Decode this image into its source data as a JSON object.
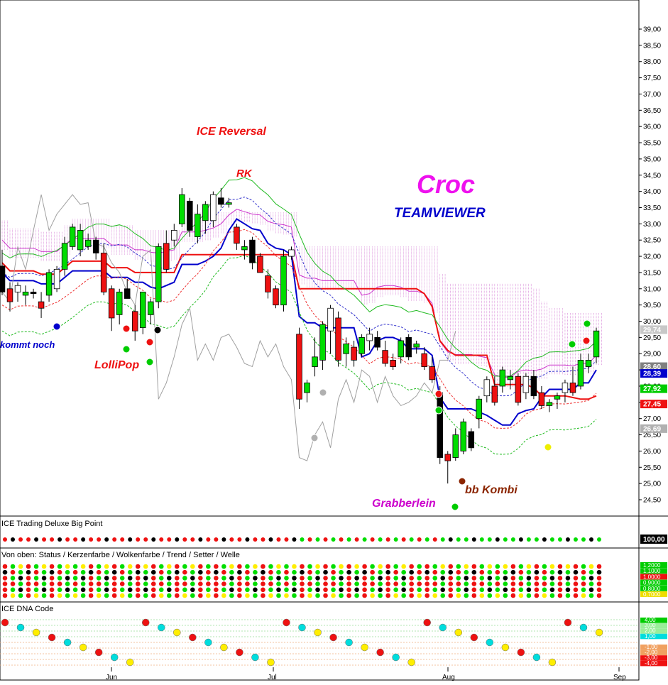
{
  "chart_data": {
    "type": "candlestick",
    "title": "TEAMVIEWER",
    "brand": "Croc",
    "y_range": [
      24.0,
      40.0
    ],
    "y_ticks": [
      "39,00",
      "38,50",
      "38,00",
      "37,50",
      "37,00",
      "36,50",
      "36,00",
      "35,50",
      "35,00",
      "34,50",
      "34,00",
      "33,50",
      "33,00",
      "32,50",
      "32,00",
      "31,50",
      "31,00",
      "30,50",
      "30,00",
      "29,50",
      "29,00",
      "28,50",
      "28,00",
      "27,50",
      "27,00",
      "26,50",
      "26,00",
      "25,50",
      "25,00",
      "24,50"
    ],
    "x_labels": [
      "Jun",
      "Jul",
      "Aug",
      "Sep"
    ],
    "price_tags": [
      {
        "label": "29,74",
        "value": 29.74,
        "color": "#c8c8c8"
      },
      {
        "label": "28,60",
        "value": 28.6,
        "color": "#808080"
      },
      {
        "label": "28,39",
        "value": 28.39,
        "color": "#0000cc"
      },
      {
        "label": "27,92",
        "value": 27.92,
        "color": "#00cc00"
      },
      {
        "label": "27,45",
        "value": 27.45,
        "color": "#ee1111"
      },
      {
        "label": "26,69",
        "value": 26.69,
        "color": "#b0b0b0"
      }
    ],
    "annotations": [
      {
        "text": "ICE Reversal",
        "color": "#ee1111"
      },
      {
        "text": "RK",
        "color": "#ee1111"
      },
      {
        "text": "LolliPop",
        "color": "#ee1111"
      },
      {
        "text": "kommt noch",
        "color": "#0000cc"
      },
      {
        "text": "Grabberlein",
        "color": "#cc00cc"
      },
      {
        "text": "bb Kombi",
        "color": "#8b2500"
      }
    ],
    "candles": [
      {
        "o": 31.7,
        "h": 32.2,
        "l": 30.8,
        "c": 30.9
      },
      {
        "o": 31.0,
        "h": 31.2,
        "l": 30.3,
        "c": 30.6
      },
      {
        "o": 30.9,
        "h": 31.2,
        "l": 30.6,
        "c": 31.1
      },
      {
        "o": 30.8,
        "h": 31.1,
        "l": 30.5,
        "c": 30.9
      },
      {
        "o": 30.9,
        "h": 31.0,
        "l": 30.7,
        "c": 30.85
      },
      {
        "o": 30.6,
        "h": 30.9,
        "l": 30.1,
        "c": 30.4
      },
      {
        "o": 30.8,
        "h": 31.6,
        "l": 30.6,
        "c": 31.5
      },
      {
        "o": 31.0,
        "h": 31.7,
        "l": 30.9,
        "c": 31.6
      },
      {
        "o": 31.6,
        "h": 32.6,
        "l": 31.4,
        "c": 32.4
      },
      {
        "o": 32.3,
        "h": 33.0,
        "l": 32.2,
        "c": 32.9
      },
      {
        "o": 32.2,
        "h": 33.0,
        "l": 32.0,
        "c": 32.8
      },
      {
        "o": 32.3,
        "h": 32.7,
        "l": 32.2,
        "c": 32.5
      },
      {
        "o": 32.5,
        "h": 32.6,
        "l": 31.9,
        "c": 32.1
      },
      {
        "o": 32.1,
        "h": 32.4,
        "l": 30.8,
        "c": 30.9
      },
      {
        "o": 31.0,
        "h": 31.1,
        "l": 29.7,
        "c": 30.1
      },
      {
        "o": 30.2,
        "h": 31.0,
        "l": 29.9,
        "c": 30.9
      },
      {
        "o": 31.0,
        "h": 31.3,
        "l": 30.7,
        "c": 30.7
      },
      {
        "o": 30.3,
        "h": 30.5,
        "l": 29.4,
        "c": 29.7
      },
      {
        "o": 29.8,
        "h": 30.9,
        "l": 29.6,
        "c": 30.9
      },
      {
        "o": 30.2,
        "h": 30.7,
        "l": 29.9,
        "c": 30.6
      },
      {
        "o": 30.6,
        "h": 32.4,
        "l": 30.4,
        "c": 32.3
      },
      {
        "o": 32.4,
        "h": 32.8,
        "l": 31.5,
        "c": 31.6
      },
      {
        "o": 32.5,
        "h": 33.0,
        "l": 32.3,
        "c": 32.8
      },
      {
        "o": 33.0,
        "h": 34.1,
        "l": 32.9,
        "c": 33.9
      },
      {
        "o": 33.7,
        "h": 33.8,
        "l": 32.6,
        "c": 32.8
      },
      {
        "o": 32.6,
        "h": 33.6,
        "l": 32.4,
        "c": 33.3
      },
      {
        "o": 33.1,
        "h": 33.7,
        "l": 32.7,
        "c": 33.6
      },
      {
        "o": 33.1,
        "h": 34.0,
        "l": 32.9,
        "c": 33.9
      },
      {
        "o": 33.8,
        "h": 34.1,
        "l": 33.5,
        "c": 33.6
      },
      {
        "o": 33.6,
        "h": 33.8,
        "l": 33.5,
        "c": 33.65
      },
      {
        "o": 32.9,
        "h": 33.0,
        "l": 32.2,
        "c": 32.4
      },
      {
        "o": 32.2,
        "h": 32.5,
        "l": 31.9,
        "c": 32.3
      },
      {
        "o": 32.5,
        "h": 32.6,
        "l": 31.6,
        "c": 31.8
      },
      {
        "o": 32.0,
        "h": 32.1,
        "l": 31.5,
        "c": 31.5
      },
      {
        "o": 31.4,
        "h": 31.6,
        "l": 30.7,
        "c": 30.9
      },
      {
        "o": 31.0,
        "h": 31.1,
        "l": 30.4,
        "c": 30.5
      },
      {
        "o": 30.5,
        "h": 32.2,
        "l": 30.3,
        "c": 32.0
      },
      {
        "o": 32.0,
        "h": 32.3,
        "l": 31.9,
        "c": 32.2
      },
      {
        "o": 29.6,
        "h": 29.8,
        "l": 27.3,
        "c": 27.6
      },
      {
        "o": 27.8,
        "h": 28.2,
        "l": 27.5,
        "c": 28.1
      },
      {
        "o": 28.6,
        "h": 29.5,
        "l": 28.3,
        "c": 28.9
      },
      {
        "o": 28.8,
        "h": 30.0,
        "l": 28.5,
        "c": 29.9
      },
      {
        "o": 29.7,
        "h": 30.5,
        "l": 29.0,
        "c": 30.4
      },
      {
        "o": 30.1,
        "h": 30.3,
        "l": 28.6,
        "c": 28.8
      },
      {
        "o": 29.0,
        "h": 29.5,
        "l": 28.6,
        "c": 29.3
      },
      {
        "o": 29.2,
        "h": 29.4,
        "l": 28.6,
        "c": 28.8
      },
      {
        "o": 29.0,
        "h": 29.6,
        "l": 28.9,
        "c": 29.5
      },
      {
        "o": 29.4,
        "h": 29.8,
        "l": 29.1,
        "c": 29.6
      },
      {
        "o": 29.5,
        "h": 29.7,
        "l": 29.1,
        "c": 29.2
      },
      {
        "o": 29.1,
        "h": 29.4,
        "l": 28.6,
        "c": 28.7
      },
      {
        "o": 28.8,
        "h": 29.0,
        "l": 28.5,
        "c": 28.6
      },
      {
        "o": 28.9,
        "h": 29.5,
        "l": 28.7,
        "c": 29.4
      },
      {
        "o": 29.5,
        "h": 29.6,
        "l": 28.8,
        "c": 28.9
      },
      {
        "o": 29.2,
        "h": 29.4,
        "l": 29.0,
        "c": 29.3
      },
      {
        "o": 29.0,
        "h": 29.2,
        "l": 28.5,
        "c": 28.6
      },
      {
        "o": 28.6,
        "h": 28.9,
        "l": 28.1,
        "c": 28.2
      },
      {
        "o": 27.8,
        "h": 28.0,
        "l": 25.6,
        "c": 25.8
      },
      {
        "o": 25.9,
        "h": 26.0,
        "l": 25.0,
        "c": 25.7
      },
      {
        "o": 25.8,
        "h": 26.7,
        "l": 25.7,
        "c": 26.5
      },
      {
        "o": 26.0,
        "h": 27.0,
        "l": 25.9,
        "c": 26.9
      },
      {
        "o": 26.6,
        "h": 26.7,
        "l": 26.0,
        "c": 26.1
      },
      {
        "o": 27.0,
        "h": 27.7,
        "l": 26.7,
        "c": 27.6
      },
      {
        "o": 27.7,
        "h": 28.3,
        "l": 27.5,
        "c": 28.2
      },
      {
        "o": 28.0,
        "h": 28.3,
        "l": 27.4,
        "c": 27.5
      },
      {
        "o": 28.0,
        "h": 28.6,
        "l": 27.8,
        "c": 28.5
      },
      {
        "o": 28.2,
        "h": 28.5,
        "l": 27.9,
        "c": 28.3
      },
      {
        "o": 28.3,
        "h": 28.4,
        "l": 27.4,
        "c": 27.5
      },
      {
        "o": 27.8,
        "h": 28.4,
        "l": 27.6,
        "c": 28.3
      },
      {
        "o": 28.3,
        "h": 28.5,
        "l": 27.6,
        "c": 27.7
      },
      {
        "o": 27.8,
        "h": 28.0,
        "l": 27.3,
        "c": 27.4
      },
      {
        "o": 27.4,
        "h": 27.6,
        "l": 27.2,
        "c": 27.5
      },
      {
        "o": 27.6,
        "h": 27.8,
        "l": 27.3,
        "c": 27.7
      },
      {
        "o": 27.8,
        "h": 28.2,
        "l": 27.5,
        "c": 28.1
      },
      {
        "o": 28.1,
        "h": 28.6,
        "l": 27.7,
        "c": 27.8
      },
      {
        "o": 28.0,
        "h": 29.0,
        "l": 27.9,
        "c": 28.8
      },
      {
        "o": 28.6,
        "h": 29.0,
        "l": 28.4,
        "c": 28.8
      },
      {
        "o": 28.9,
        "h": 29.8,
        "l": 28.7,
        "c": 29.7
      }
    ],
    "panels": [
      {
        "title": "ICE Trading Deluxe Big Point",
        "value_tag": "100,00"
      },
      {
        "title": "Von oben: Status / Kerzenfarbe / Wolkenfarbe / Trend / Setter / Welle",
        "tags": [
          "1,2000",
          "1,1000",
          "1,0000",
          "0,9000",
          "0,8000",
          "0,7000"
        ]
      },
      {
        "title": "ICE DNA Code",
        "tags": [
          "4,00",
          "3,00",
          "2,00",
          "1,00",
          "0,00",
          "-1,00",
          "-2,00",
          "-3,00",
          "-4,00"
        ]
      }
    ]
  }
}
